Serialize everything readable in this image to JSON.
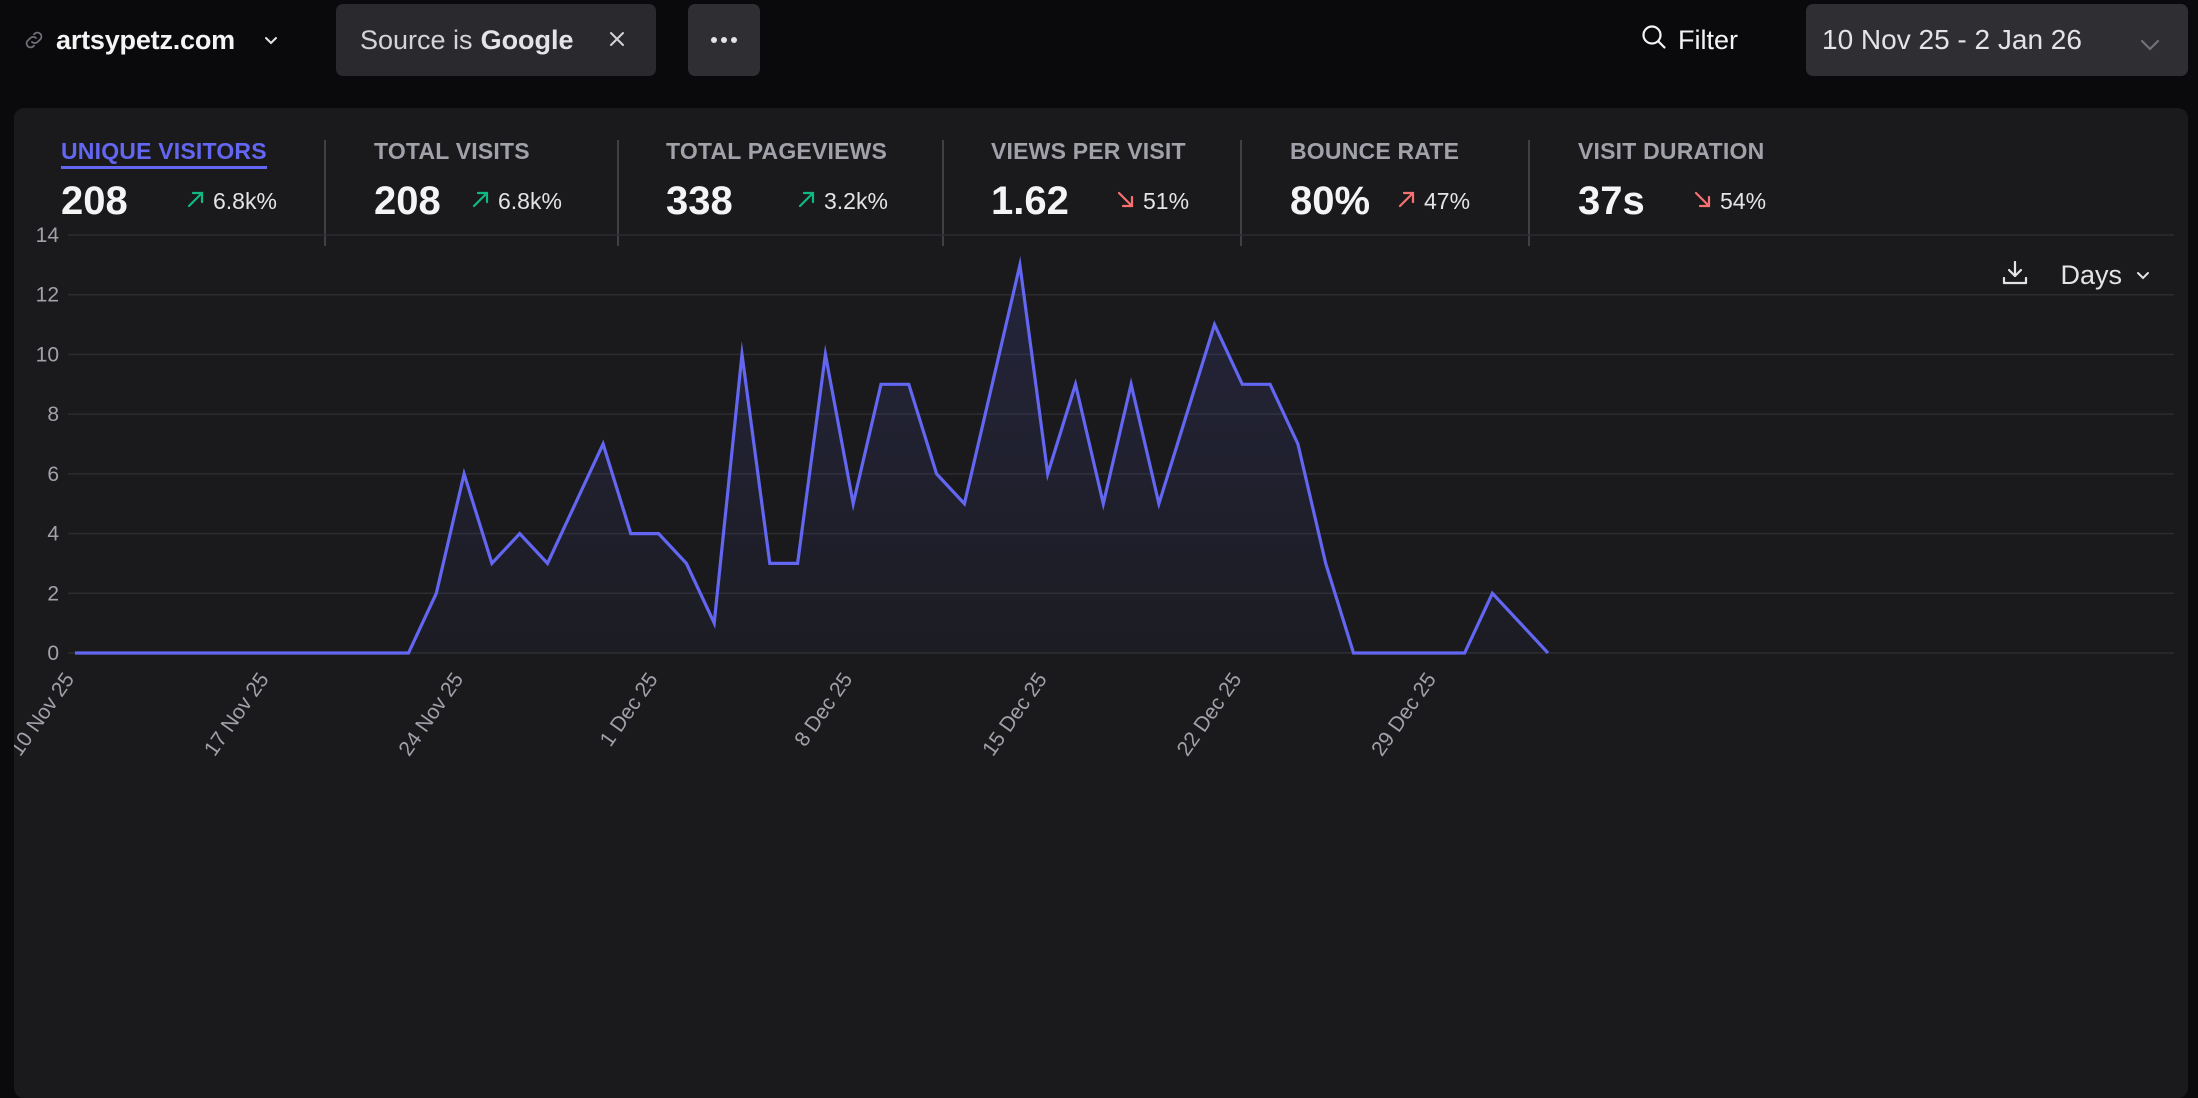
{
  "topbar": {
    "site_name": "artsypetz.com",
    "site_icon": "link-icon",
    "filter_chip": {
      "prefix": "Source is",
      "value": "Google",
      "remove_icon": "close-icon"
    },
    "more_icon": "ellipsis-icon",
    "filter_label": "Filter",
    "filter_icon": "search-icon",
    "date_range": "10 Nov 25 - 2 Jan 26"
  },
  "stats": [
    {
      "label": "UNIQUE VISITORS",
      "value": "208",
      "change": "6.8k%",
      "direction": "up",
      "good": true,
      "active": true
    },
    {
      "label": "TOTAL VISITS",
      "value": "208",
      "change": "6.8k%",
      "direction": "up",
      "good": true,
      "active": false
    },
    {
      "label": "TOTAL PAGEVIEWS",
      "value": "338",
      "change": "3.2k%",
      "direction": "up",
      "good": true,
      "active": false
    },
    {
      "label": "VIEWS PER VISIT",
      "value": "1.62",
      "change": "51%",
      "direction": "down",
      "good": false,
      "active": false
    },
    {
      "label": "BOUNCE RATE",
      "value": "80%",
      "change": "47%",
      "direction": "up",
      "good": false,
      "active": false
    },
    {
      "label": "VISIT DURATION",
      "value": "37s",
      "change": "54%",
      "direction": "down",
      "good": false,
      "active": false
    }
  ],
  "colors": {
    "accent": "#6366f1",
    "positive": "#10b981",
    "negative": "#f87171",
    "line": "#6366f1"
  },
  "chart_controls": {
    "download_icon": "download-icon",
    "interval": "Days"
  },
  "chart_data": {
    "type": "area",
    "title": "",
    "xlabel": "",
    "ylabel": "Unique visitors",
    "ylim": [
      0,
      14
    ],
    "yticks": [
      0,
      2,
      4,
      6,
      8,
      10,
      12,
      14
    ],
    "grid": true,
    "xtick_labels": [
      "10 Nov 25",
      "17 Nov 25",
      "24 Nov 25",
      "1 Dec 25",
      "8 Dec 25",
      "15 Dec 25",
      "22 Dec 25",
      "29 Dec 25"
    ],
    "xtick_every": 7,
    "x_start": "10 Nov 25",
    "x_end": "2 Jan 26",
    "series": [
      {
        "name": "Unique visitors",
        "values": [
          0,
          0,
          0,
          0,
          0,
          0,
          0,
          0,
          0,
          0,
          0,
          0,
          0,
          2,
          6,
          3,
          4,
          3,
          5,
          7,
          4,
          4,
          3,
          1,
          10,
          3,
          3,
          10,
          5,
          9,
          9,
          6,
          5,
          9,
          13,
          6,
          9,
          5,
          9,
          5,
          8,
          11,
          9,
          9,
          7,
          3,
          0,
          0,
          0,
          0,
          0,
          2,
          1,
          0
        ]
      }
    ]
  }
}
